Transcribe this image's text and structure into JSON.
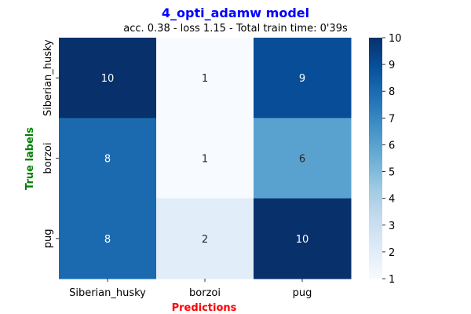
{
  "chart_data": {
    "type": "heatmap",
    "title": "4_opti_adamw model",
    "subtitle": "acc. 0.38 - loss 1.15 - Total train time: 0'39s",
    "xlabel": "Predictions",
    "ylabel": "True labels",
    "x_categories": [
      "Siberian_husky",
      "borzoi",
      "pug"
    ],
    "y_categories": [
      "Siberian_husky",
      "borzoi",
      "pug"
    ],
    "values": [
      [
        10,
        1,
        9
      ],
      [
        8,
        1,
        6
      ],
      [
        8,
        2,
        10
      ]
    ],
    "colorbar": {
      "min": 1,
      "max": 10,
      "ticks": [
        "1",
        "2",
        "3",
        "4",
        "5",
        "6",
        "7",
        "8",
        "9",
        "10"
      ]
    },
    "colormap": "Blues",
    "colors": {
      "title": "#0000ff",
      "xlabel": "#ff0000",
      "ylabel": "#008000"
    }
  }
}
